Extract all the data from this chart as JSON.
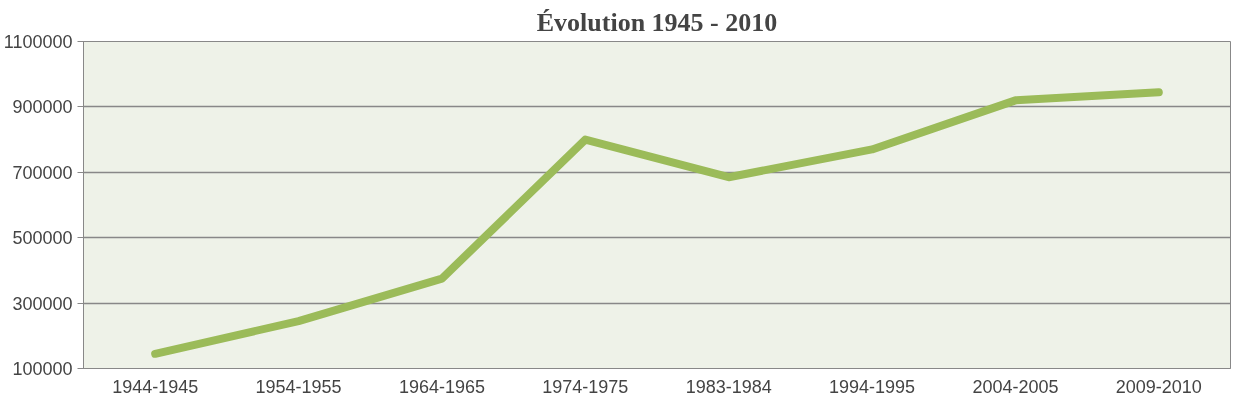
{
  "chart_data": {
    "type": "line",
    "title": "Évolution 1945 - 2010",
    "categories": [
      "1944-1945",
      "1954-1955",
      "1964-1965",
      "1974-1975",
      "1983-1984",
      "1994-1995",
      "2004-2005",
      "2009-2010"
    ],
    "series": [
      {
        "color": "#9bbb59",
        "values": [
          145000,
          245000,
          375000,
          800000,
          685000,
          770000,
          920000,
          945000
        ]
      }
    ],
    "ylim": [
      100000,
      1100000
    ],
    "yticks": [
      100000,
      300000,
      500000,
      700000,
      900000,
      1100000
    ],
    "grid": "y",
    "marker": "none",
    "line_style": "solid"
  }
}
